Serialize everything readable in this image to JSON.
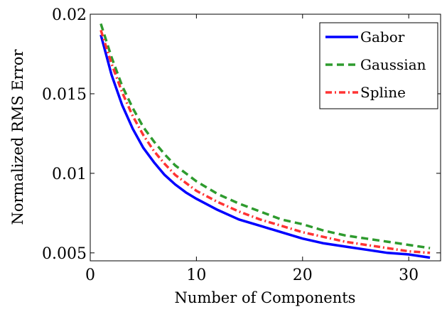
{
  "chart_data": {
    "type": "line",
    "title": "",
    "xlabel": "Number of Components",
    "ylabel": "Normalized RMS Error",
    "xlim": [
      0,
      33
    ],
    "ylim": [
      0.0045,
      0.02
    ],
    "xticks": [
      0,
      10,
      20,
      30
    ],
    "yticks": [
      0.005,
      0.01,
      0.015,
      0.02
    ],
    "xtick_labels": [
      "0",
      "10",
      "20",
      "30"
    ],
    "ytick_labels": [
      "0.005",
      "0.01",
      "0.015",
      "0.02"
    ],
    "grid": false,
    "legend_position": "top-right",
    "series": [
      {
        "name": "Gabor",
        "color": "#0000ff",
        "style": "solid",
        "x": [
          1,
          2,
          3,
          4,
          5,
          6,
          7,
          8,
          9,
          10,
          12,
          14,
          16,
          18,
          20,
          22,
          24,
          26,
          28,
          30,
          32
        ],
        "y": [
          0.0187,
          0.0162,
          0.0143,
          0.0128,
          0.0116,
          0.0107,
          0.0099,
          0.0093,
          0.0088,
          0.0084,
          0.0077,
          0.0071,
          0.0067,
          0.0063,
          0.0059,
          0.0056,
          0.0054,
          0.0052,
          0.005,
          0.0049,
          0.0047
        ]
      },
      {
        "name": "Gaussian",
        "color": "#2e9b2e",
        "style": "dashed",
        "x": [
          1,
          2,
          3,
          4,
          5,
          6,
          7,
          8,
          9,
          10,
          12,
          14,
          16,
          18,
          20,
          22,
          24,
          26,
          28,
          30,
          32
        ],
        "y": [
          0.0194,
          0.0173,
          0.0155,
          0.0141,
          0.0129,
          0.012,
          0.0112,
          0.0105,
          0.01,
          0.0095,
          0.0087,
          0.0081,
          0.0076,
          0.0071,
          0.0068,
          0.0064,
          0.0061,
          0.0059,
          0.0057,
          0.0055,
          0.0053
        ]
      },
      {
        "name": "Spline",
        "color": "#ff3333",
        "style": "dashdot",
        "x": [
          1,
          2,
          3,
          4,
          5,
          6,
          7,
          8,
          9,
          10,
          12,
          14,
          16,
          18,
          20,
          22,
          24,
          26,
          28,
          30,
          32
        ],
        "y": [
          0.019,
          0.0169,
          0.0151,
          0.0136,
          0.0124,
          0.0114,
          0.0106,
          0.0099,
          0.0094,
          0.0089,
          0.0082,
          0.0076,
          0.0071,
          0.0067,
          0.0063,
          0.006,
          0.0057,
          0.0055,
          0.0053,
          0.0051,
          0.005
        ]
      }
    ]
  }
}
